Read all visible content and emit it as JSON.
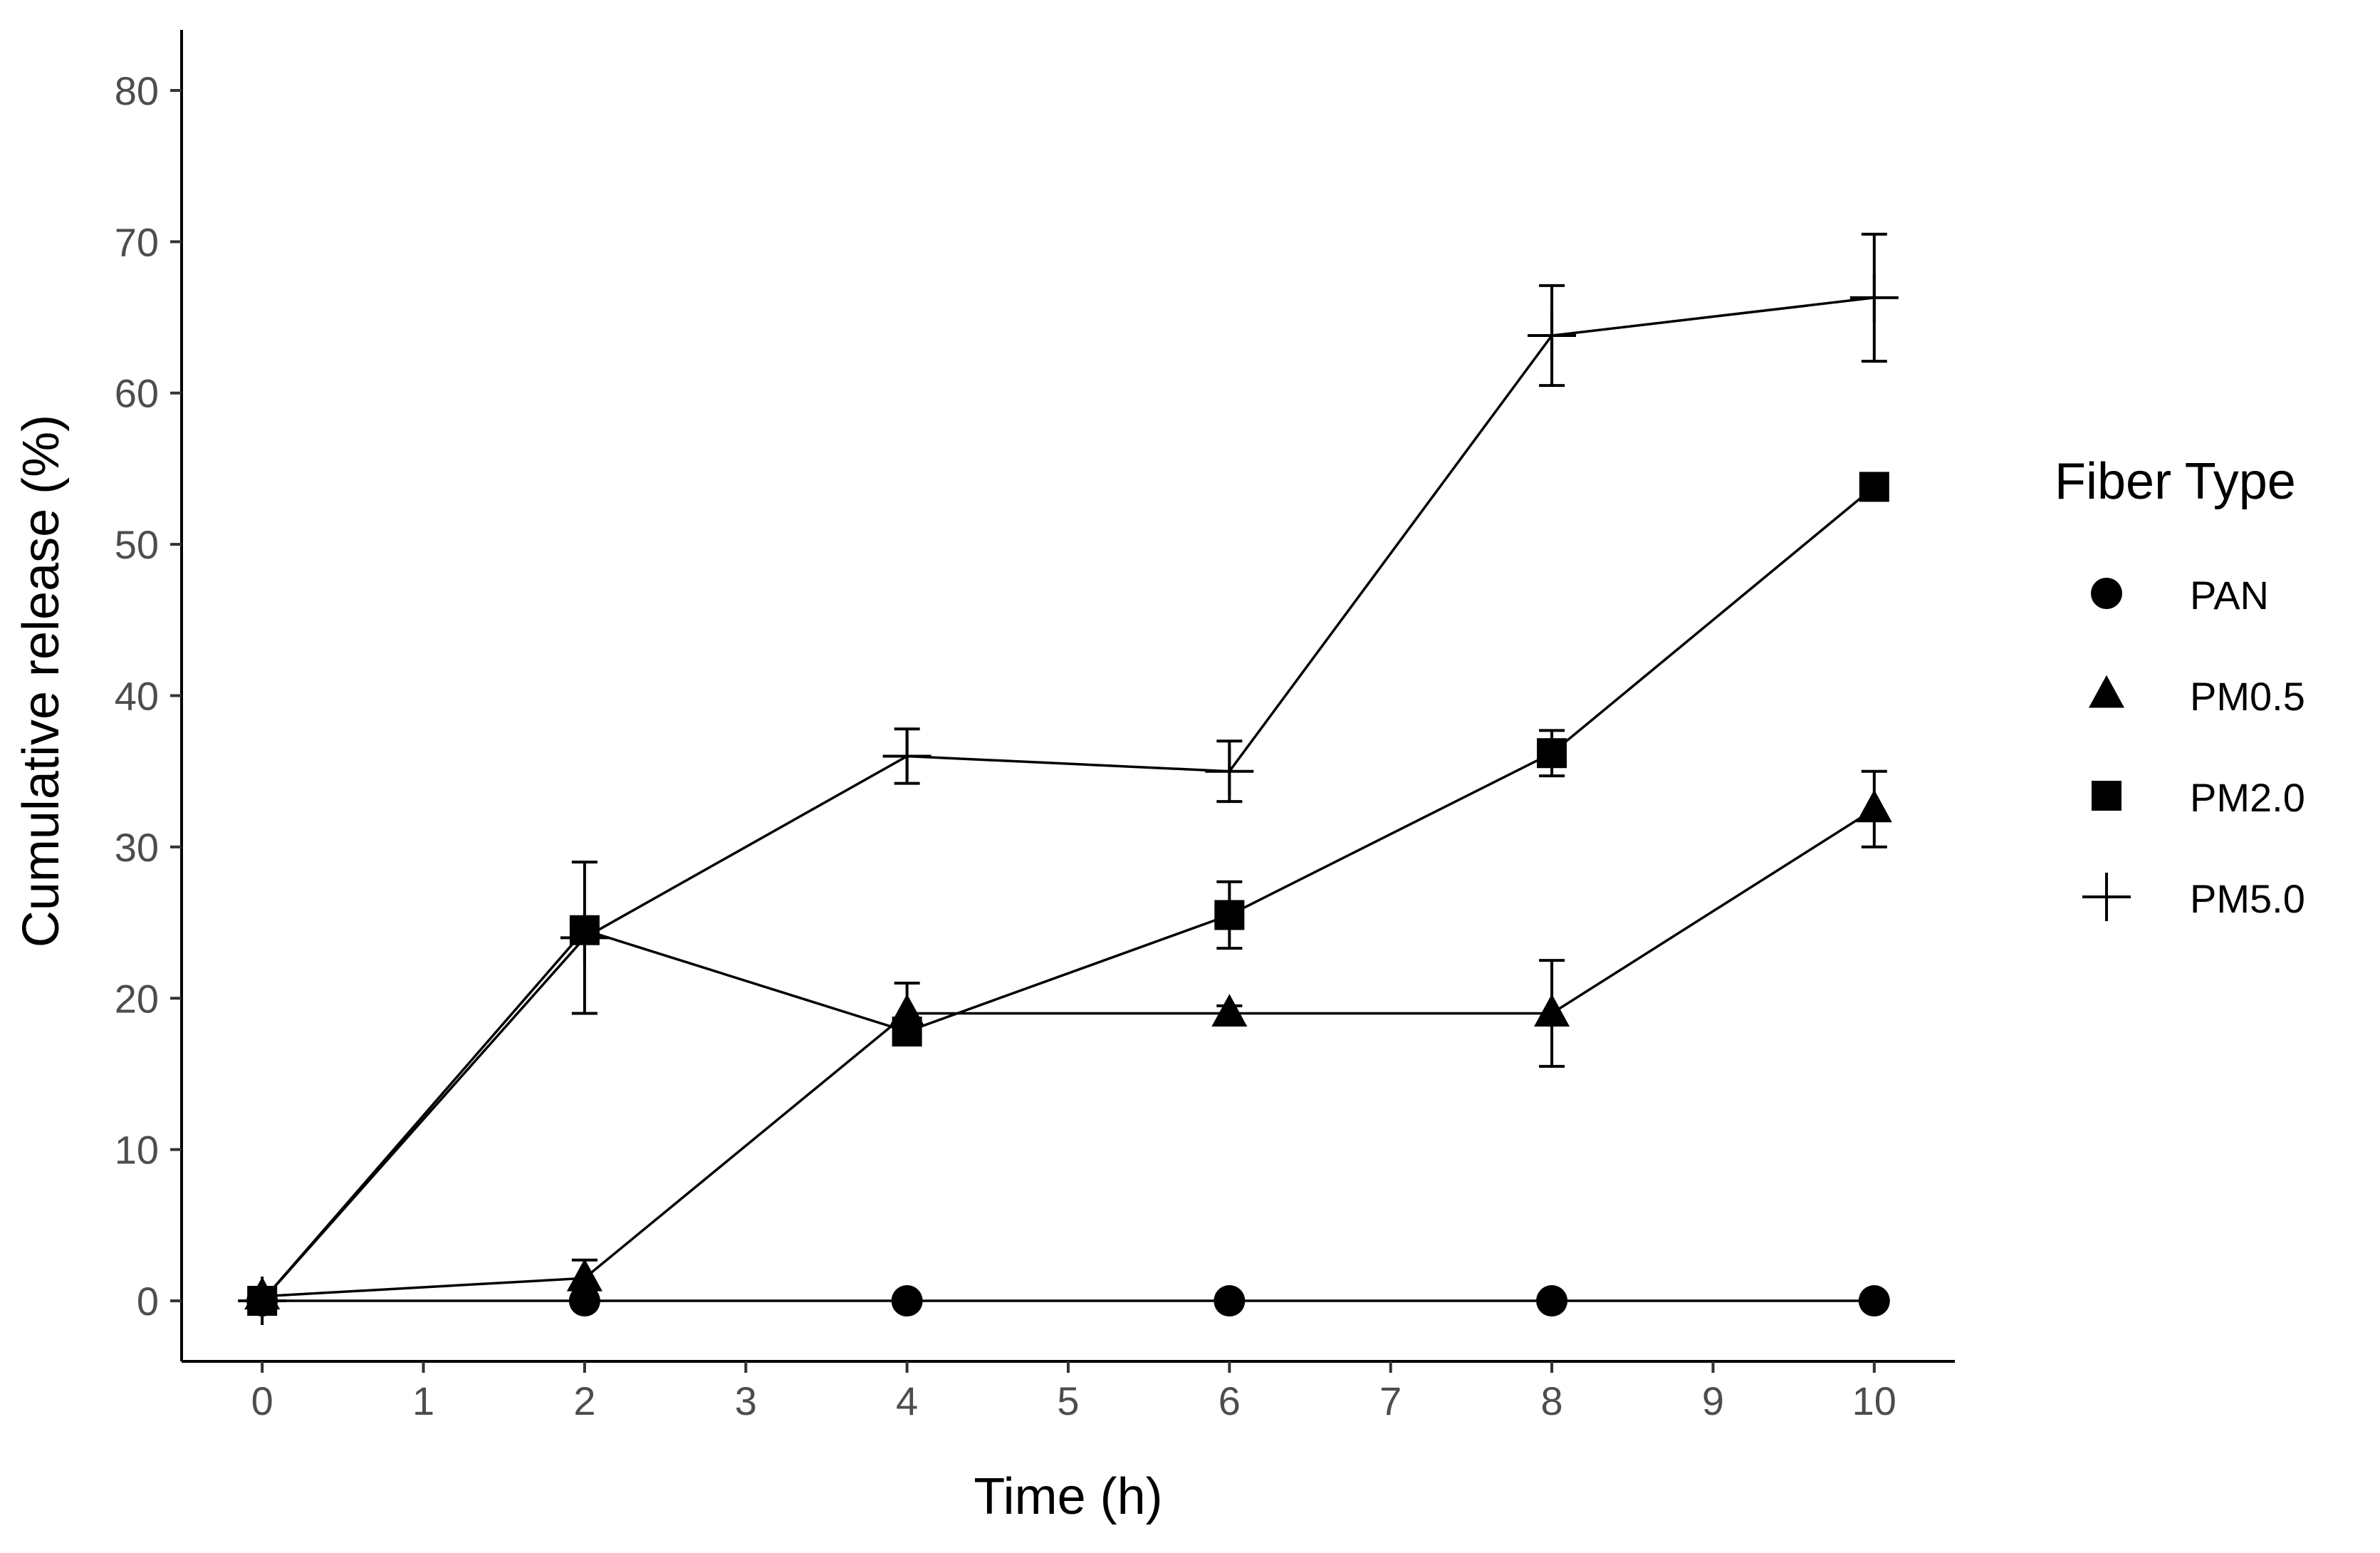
{
  "chart_data": {
    "type": "line",
    "title": "",
    "xlabel": "Time (h)",
    "ylabel": "Cumulative release (%)",
    "xlim": [
      -0.5,
      10.5
    ],
    "ylim": [
      -4,
      84
    ],
    "xticks": [
      0,
      1,
      2,
      3,
      4,
      5,
      6,
      7,
      8,
      9,
      10
    ],
    "yticks": [
      0,
      10,
      20,
      30,
      40,
      50,
      60,
      70,
      80
    ],
    "grid": false,
    "legend": {
      "title": "Fiber Type",
      "position": "right"
    },
    "x": [
      0,
      2,
      4,
      6,
      8,
      10
    ],
    "series": [
      {
        "name": "PAN",
        "marker": "circle",
        "values": [
          0,
          0,
          0,
          0,
          0,
          0
        ],
        "errors": [
          0,
          0,
          0,
          0,
          0,
          0
        ]
      },
      {
        "name": "PM0.5",
        "marker": "triangle",
        "values": [
          0.3,
          1.5,
          19,
          19,
          19,
          32.5
        ],
        "errors": [
          0,
          1.2,
          2,
          0.5,
          3.5,
          2.5
        ]
      },
      {
        "name": "PM2.0",
        "marker": "square",
        "values": [
          0,
          24.5,
          17.8,
          25.5,
          36.2,
          53.8
        ],
        "errors": [
          0,
          0,
          0,
          2.2,
          1.5,
          0
        ]
      },
      {
        "name": "PM5.0",
        "marker": "plus",
        "values": [
          0,
          24,
          36,
          35,
          63.8,
          66.3
        ],
        "errors": [
          0,
          5,
          1.8,
          2,
          3.3,
          4.2
        ]
      }
    ]
  },
  "colors": {
    "ink": "#000000",
    "tick_text": "#4d4d4d",
    "background": "#ffffff"
  }
}
